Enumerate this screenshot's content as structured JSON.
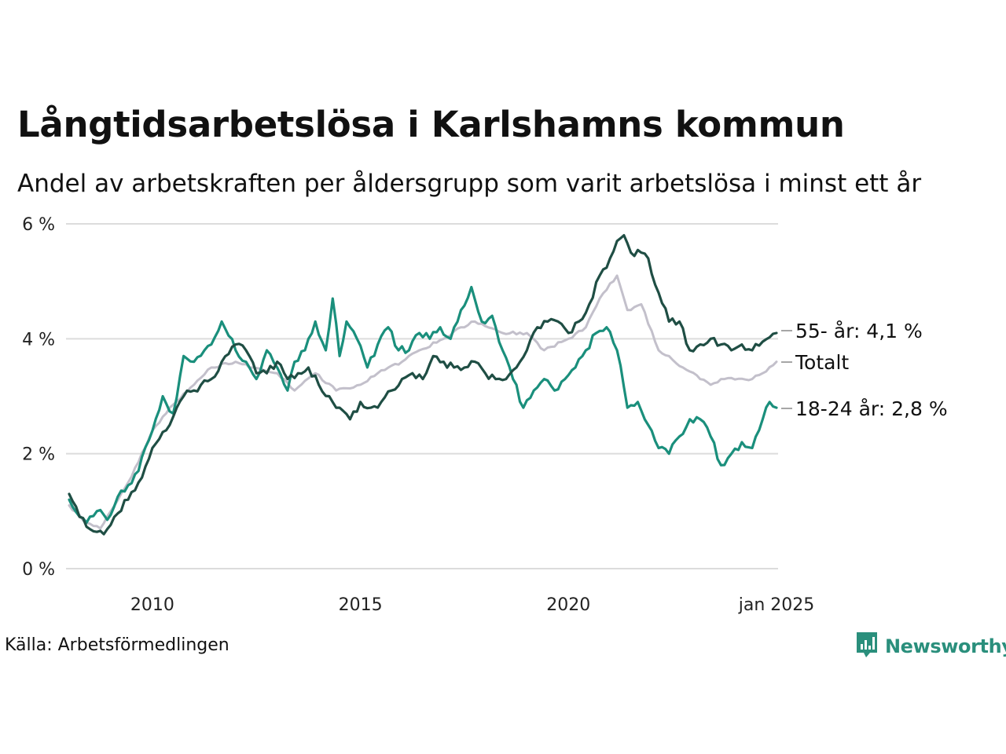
{
  "header": {
    "title": "Långtidsarbetslösa i Karlshamns kommun",
    "subtitle": "Andel av arbetskraften per åldersgrupp som varit arbetslösa i minst ett år"
  },
  "footer": {
    "source": "Källa: Arbetsförmedlingen",
    "brand": "Newsworthy",
    "brand_icon": "newsworthy-logo-icon",
    "brand_color": "#2a8f7c"
  },
  "chart_data": {
    "type": "line",
    "x_start": "2008-01",
    "x_end": "2025-01",
    "frequency": "monthly",
    "x_ticks": [
      {
        "date": "2010-01",
        "label": "2010"
      },
      {
        "date": "2015-01",
        "label": "2015"
      },
      {
        "date": "2020-01",
        "label": "2020"
      },
      {
        "date": "2025-01",
        "label": "jan 2025"
      }
    ],
    "ylim": [
      0,
      6
    ],
    "y_ticks": [
      {
        "value": 0,
        "label": "0 %"
      },
      {
        "value": 2,
        "label": "2 %"
      },
      {
        "value": 4,
        "label": "4 %"
      },
      {
        "value": 6,
        "label": "6 %"
      }
    ],
    "grid": "horizontal",
    "legend": "direct labels at line ends",
    "series": [
      {
        "name": "Totalt",
        "label": "Totalt",
        "color": "#c3c0cb",
        "keypoints": [
          [
            "2008-01",
            1.1
          ],
          [
            "2008-06",
            0.8
          ],
          [
            "2008-10",
            0.7
          ],
          [
            "2009-01",
            1.0
          ],
          [
            "2009-07",
            1.6
          ],
          [
            "2010-01",
            2.4
          ],
          [
            "2010-06",
            2.8
          ],
          [
            "2011-01",
            3.2
          ],
          [
            "2011-06",
            3.5
          ],
          [
            "2012-01",
            3.6
          ],
          [
            "2012-06",
            3.5
          ],
          [
            "2013-01",
            3.4
          ],
          [
            "2013-06",
            3.1
          ],
          [
            "2013-12",
            3.4
          ],
          [
            "2014-06",
            3.1
          ],
          [
            "2015-01",
            3.2
          ],
          [
            "2015-06",
            3.4
          ],
          [
            "2016-01",
            3.6
          ],
          [
            "2016-06",
            3.8
          ],
          [
            "2017-01",
            4.0
          ],
          [
            "2017-06",
            4.2
          ],
          [
            "2017-10",
            4.3
          ],
          [
            "2018-06",
            4.1
          ],
          [
            "2019-01",
            4.1
          ],
          [
            "2019-06",
            3.8
          ],
          [
            "2020-01",
            4.0
          ],
          [
            "2020-06",
            4.2
          ],
          [
            "2020-10",
            4.7
          ],
          [
            "2021-03",
            5.1
          ],
          [
            "2021-06",
            4.5
          ],
          [
            "2021-10",
            4.6
          ],
          [
            "2022-03",
            3.8
          ],
          [
            "2022-06",
            3.7
          ],
          [
            "2022-10",
            3.5
          ],
          [
            "2023-06",
            3.2
          ],
          [
            "2023-09",
            3.3
          ],
          [
            "2024-06",
            3.3
          ],
          [
            "2024-09",
            3.4
          ],
          [
            "2025-01",
            3.6
          ]
        ]
      },
      {
        "name": "18-24 år",
        "label": "18-24 år: 2,8 %",
        "color": "#1a8f7c",
        "keypoints": [
          [
            "2008-01",
            1.2
          ],
          [
            "2008-06",
            0.8
          ],
          [
            "2008-09",
            1.0
          ],
          [
            "2008-12",
            0.85
          ],
          [
            "2009-03",
            1.25
          ],
          [
            "2009-06",
            1.45
          ],
          [
            "2009-09",
            1.7
          ],
          [
            "2010-01",
            2.4
          ],
          [
            "2010-04",
            3.0
          ],
          [
            "2010-07",
            2.7
          ],
          [
            "2010-10",
            3.7
          ],
          [
            "2011-01",
            3.6
          ],
          [
            "2011-04",
            3.8
          ],
          [
            "2011-06",
            3.9
          ],
          [
            "2011-09",
            4.3
          ],
          [
            "2012-01",
            3.8
          ],
          [
            "2012-04",
            3.6
          ],
          [
            "2012-07",
            3.3
          ],
          [
            "2012-10",
            3.8
          ],
          [
            "2013-01",
            3.5
          ],
          [
            "2013-04",
            3.1
          ],
          [
            "2013-06",
            3.6
          ],
          [
            "2013-09",
            3.8
          ],
          [
            "2013-12",
            4.3
          ],
          [
            "2014-03",
            3.8
          ],
          [
            "2014-05",
            4.7
          ],
          [
            "2014-07",
            3.7
          ],
          [
            "2014-09",
            4.3
          ],
          [
            "2014-12",
            4.0
          ],
          [
            "2015-03",
            3.5
          ],
          [
            "2015-06",
            3.9
          ],
          [
            "2015-09",
            4.2
          ],
          [
            "2015-12",
            3.8
          ],
          [
            "2016-03",
            3.8
          ],
          [
            "2016-06",
            4.1
          ],
          [
            "2016-09",
            4.0
          ],
          [
            "2016-12",
            4.2
          ],
          [
            "2017-03",
            4.0
          ],
          [
            "2017-06",
            4.5
          ],
          [
            "2017-09",
            4.9
          ],
          [
            "2017-12",
            4.3
          ],
          [
            "2018-03",
            4.4
          ],
          [
            "2018-06",
            3.8
          ],
          [
            "2018-09",
            3.3
          ],
          [
            "2018-12",
            2.8
          ],
          [
            "2019-03",
            3.1
          ],
          [
            "2019-06",
            3.3
          ],
          [
            "2019-09",
            3.1
          ],
          [
            "2019-12",
            3.3
          ],
          [
            "2020-03",
            3.5
          ],
          [
            "2020-06",
            3.8
          ],
          [
            "2020-09",
            4.1
          ],
          [
            "2020-12",
            4.2
          ],
          [
            "2021-03",
            3.8
          ],
          [
            "2021-06",
            2.8
          ],
          [
            "2021-09",
            2.9
          ],
          [
            "2021-12",
            2.5
          ],
          [
            "2022-03",
            2.1
          ],
          [
            "2022-06",
            2.0
          ],
          [
            "2022-09",
            2.3
          ],
          [
            "2022-12",
            2.6
          ],
          [
            "2023-03",
            2.6
          ],
          [
            "2023-06",
            2.3
          ],
          [
            "2023-09",
            1.8
          ],
          [
            "2023-12",
            2.0
          ],
          [
            "2024-03",
            2.2
          ],
          [
            "2024-06",
            2.1
          ],
          [
            "2024-09",
            2.6
          ],
          [
            "2024-11",
            2.9
          ],
          [
            "2025-01",
            2.8
          ]
        ]
      },
      {
        "name": "55- år",
        "label": "55- år: 4,1 %",
        "color": "#1f4e44",
        "keypoints": [
          [
            "2008-01",
            1.3
          ],
          [
            "2008-04",
            0.9
          ],
          [
            "2008-08",
            0.65
          ],
          [
            "2008-11",
            0.6
          ],
          [
            "2009-02",
            0.9
          ],
          [
            "2009-06",
            1.2
          ],
          [
            "2009-09",
            1.5
          ],
          [
            "2010-01",
            2.1
          ],
          [
            "2010-06",
            2.5
          ],
          [
            "2010-10",
            3.0
          ],
          [
            "2011-01",
            3.1
          ],
          [
            "2011-06",
            3.3
          ],
          [
            "2011-09",
            3.6
          ],
          [
            "2012-01",
            3.9
          ],
          [
            "2012-04",
            3.8
          ],
          [
            "2012-07",
            3.4
          ],
          [
            "2012-10",
            3.4
          ],
          [
            "2013-01",
            3.6
          ],
          [
            "2013-04",
            3.3
          ],
          [
            "2013-07",
            3.4
          ],
          [
            "2013-10",
            3.5
          ],
          [
            "2014-01",
            3.2
          ],
          [
            "2014-04",
            3.0
          ],
          [
            "2014-07",
            2.8
          ],
          [
            "2014-10",
            2.6
          ],
          [
            "2015-01",
            2.9
          ],
          [
            "2015-04",
            2.8
          ],
          [
            "2015-07",
            2.9
          ],
          [
            "2015-10",
            3.1
          ],
          [
            "2016-01",
            3.3
          ],
          [
            "2016-04",
            3.4
          ],
          [
            "2016-07",
            3.3
          ],
          [
            "2016-10",
            3.7
          ],
          [
            "2017-01",
            3.6
          ],
          [
            "2017-04",
            3.5
          ],
          [
            "2017-07",
            3.5
          ],
          [
            "2017-10",
            3.6
          ],
          [
            "2018-01",
            3.4
          ],
          [
            "2018-04",
            3.3
          ],
          [
            "2018-07",
            3.3
          ],
          [
            "2018-10",
            3.5
          ],
          [
            "2019-01",
            3.8
          ],
          [
            "2019-04",
            4.2
          ],
          [
            "2019-07",
            4.3
          ],
          [
            "2019-10",
            4.3
          ],
          [
            "2020-01",
            4.1
          ],
          [
            "2020-04",
            4.3
          ],
          [
            "2020-07",
            4.6
          ],
          [
            "2020-10",
            5.1
          ],
          [
            "2021-01",
            5.4
          ],
          [
            "2021-03",
            5.7
          ],
          [
            "2021-05",
            5.8
          ],
          [
            "2021-07",
            5.5
          ],
          [
            "2021-10",
            5.5
          ],
          [
            "2021-12",
            5.4
          ],
          [
            "2022-03",
            4.8
          ],
          [
            "2022-06",
            4.3
          ],
          [
            "2022-09",
            4.3
          ],
          [
            "2022-12",
            3.8
          ],
          [
            "2023-03",
            3.9
          ],
          [
            "2023-06",
            4.0
          ],
          [
            "2023-09",
            3.9
          ],
          [
            "2023-12",
            3.8
          ],
          [
            "2024-03",
            3.9
          ],
          [
            "2024-06",
            3.8
          ],
          [
            "2024-09",
            3.95
          ],
          [
            "2025-01",
            4.1
          ]
        ]
      }
    ]
  }
}
